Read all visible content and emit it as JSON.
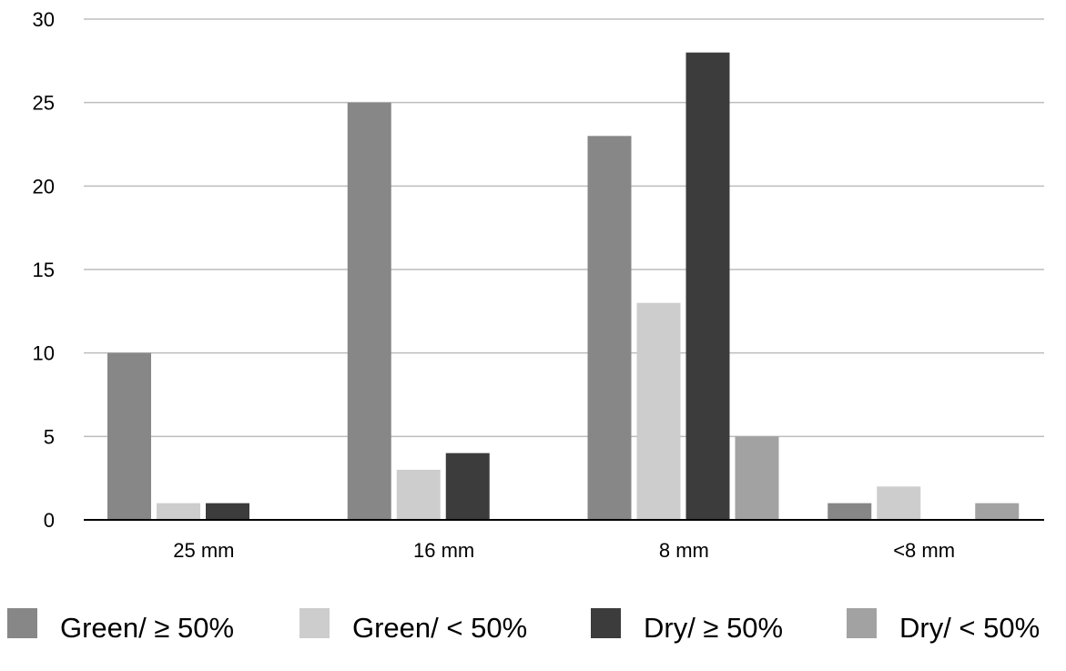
{
  "chart_data": {
    "type": "bar",
    "title": "",
    "xlabel": "",
    "ylabel": "",
    "categories": [
      "25 mm",
      "16 mm",
      "8 mm",
      "<8 mm"
    ],
    "ylim": [
      0,
      30
    ],
    "yticks": [
      0,
      5,
      10,
      15,
      20,
      25,
      30
    ],
    "ytick_labels": [
      "0",
      "5",
      "10",
      "15",
      "20",
      "25",
      "30"
    ],
    "grid": true,
    "legend_position": "bottom",
    "series": [
      {
        "name": "Green/ ≥ 50%",
        "color": "#878787",
        "values": [
          10,
          25,
          23,
          1
        ]
      },
      {
        "name": "Green/ < 50%",
        "color": "#cdcdcd",
        "values": [
          1,
          3,
          13,
          2
        ]
      },
      {
        "name": "Dry/ ≥ 50%",
        "color": "#3c3c3c",
        "values": [
          1,
          4,
          28,
          0
        ]
      },
      {
        "name": "Dry/ < 50%",
        "color": "#a2a2a2",
        "values": [
          0,
          0,
          5,
          1
        ]
      }
    ]
  }
}
